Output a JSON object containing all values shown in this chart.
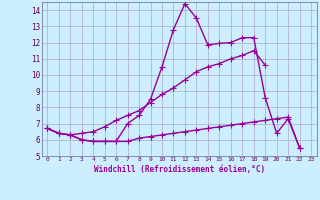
{
  "xlabel": "Windchill (Refroidissement éolien,°C)",
  "x_values": [
    0,
    1,
    2,
    3,
    4,
    5,
    6,
    7,
    8,
    9,
    10,
    11,
    12,
    13,
    14,
    15,
    16,
    17,
    18,
    19,
    20,
    21,
    22,
    23
  ],
  "line1": [
    6.7,
    6.4,
    6.3,
    6.0,
    5.9,
    5.9,
    5.9,
    7.0,
    7.5,
    8.5,
    10.5,
    12.8,
    14.4,
    13.5,
    11.85,
    11.95,
    12.0,
    12.3,
    12.3,
    8.6,
    6.4,
    7.3,
    5.5,
    null
  ],
  "line2": [
    6.7,
    6.4,
    6.3,
    6.4,
    6.5,
    6.8,
    7.2,
    7.5,
    7.8,
    8.3,
    8.8,
    9.2,
    9.7,
    10.2,
    10.5,
    10.7,
    11.0,
    11.2,
    11.5,
    10.6,
    null,
    null,
    null,
    null
  ],
  "line3": [
    6.7,
    6.4,
    6.3,
    6.0,
    5.9,
    5.9,
    5.9,
    5.9,
    6.1,
    6.2,
    6.3,
    6.4,
    6.5,
    6.6,
    6.7,
    6.8,
    6.9,
    7.0,
    7.1,
    7.2,
    7.3,
    7.4,
    5.5,
    null
  ],
  "line_color": "#990099",
  "bg_color": "#cceeff",
  "grid_color": "#aaaacc",
  "ylim": [
    5,
    14.5
  ],
  "xlim": [
    -0.5,
    23.5
  ],
  "yticks": [
    5,
    6,
    7,
    8,
    9,
    10,
    11,
    12,
    13,
    14
  ],
  "xticks": [
    0,
    1,
    2,
    3,
    4,
    5,
    6,
    7,
    8,
    9,
    10,
    11,
    12,
    13,
    14,
    15,
    16,
    17,
    18,
    19,
    20,
    21,
    22,
    23
  ],
  "marker": "+",
  "markersize": 4,
  "linewidth": 1.0
}
